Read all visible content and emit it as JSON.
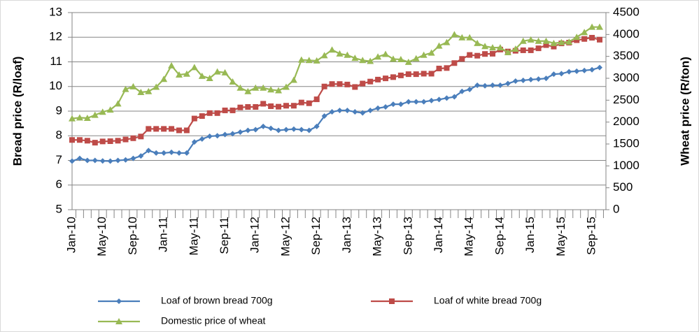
{
  "chart_data": {
    "type": "line",
    "y_label": "Bread price (R/loaf)",
    "y2_label": "Wheat price (R/ton)",
    "categories": [
      "Jan-10",
      null,
      null,
      null,
      "May-10",
      null,
      null,
      null,
      "Sep-10",
      null,
      null,
      null,
      "Jan-11",
      null,
      null,
      null,
      "May-11",
      null,
      null,
      null,
      "Sep-11",
      null,
      null,
      null,
      "Jan-12",
      null,
      null,
      null,
      "May-12",
      null,
      null,
      null,
      "Sep-12",
      null,
      null,
      null,
      "Jan-13",
      null,
      null,
      null,
      "May-13",
      null,
      null,
      null,
      "Sep-13",
      null,
      null,
      null,
      "Jan-14",
      null,
      null,
      null,
      "May-14",
      null,
      null,
      null,
      "Sep-14",
      null,
      null,
      null,
      "Jan-15",
      null,
      null,
      null,
      "May-15",
      null,
      null,
      null,
      "Sep-15",
      null
    ],
    "series": [
      {
        "name": "Loaf of brown bread 700g",
        "color": "#4a7ebb",
        "marker": "diamond",
        "values": [
          6.97,
          7.08,
          7.0,
          7.0,
          6.98,
          6.97,
          7.0,
          7.02,
          7.08,
          7.18,
          7.4,
          7.3,
          7.3,
          7.33,
          7.3,
          7.3,
          7.75,
          7.87,
          7.98,
          8.0,
          8.05,
          8.08,
          8.15,
          8.22,
          8.25,
          8.38,
          8.3,
          8.22,
          8.25,
          8.27,
          8.25,
          8.22,
          8.38,
          8.8,
          8.97,
          9.03,
          9.03,
          8.97,
          8.93,
          9.03,
          9.12,
          9.17,
          9.28,
          9.28,
          9.38,
          9.38,
          9.38,
          9.43,
          9.47,
          9.53,
          9.58,
          9.8,
          9.88,
          10.05,
          10.03,
          10.05,
          10.05,
          10.12,
          10.22,
          10.25,
          10.28,
          10.3,
          10.33,
          10.5,
          10.52,
          10.6,
          10.62,
          10.65,
          10.68,
          10.77
        ]
      },
      {
        "name": "Loaf of white bread 700g",
        "color": "#be4b48",
        "marker": "square",
        "values": [
          7.83,
          7.83,
          7.8,
          7.72,
          7.77,
          7.78,
          7.8,
          7.85,
          7.9,
          7.97,
          8.28,
          8.28,
          8.28,
          8.28,
          8.22,
          8.22,
          8.7,
          8.8,
          8.92,
          8.92,
          9.03,
          9.03,
          9.15,
          9.17,
          9.17,
          9.3,
          9.2,
          9.18,
          9.22,
          9.22,
          9.35,
          9.32,
          9.48,
          10.0,
          10.1,
          10.1,
          10.08,
          9.98,
          10.12,
          10.2,
          10.28,
          10.33,
          10.38,
          10.45,
          10.5,
          10.5,
          10.52,
          10.52,
          10.73,
          10.75,
          10.95,
          11.12,
          11.28,
          11.25,
          11.32,
          11.33,
          11.5,
          11.42,
          11.45,
          11.47,
          11.47,
          11.55,
          11.68,
          11.62,
          11.75,
          11.78,
          11.88,
          11.93,
          11.98,
          11.9
        ]
      },
      {
        "name": "Domestic price of wheat",
        "color": "#98b954",
        "marker": "triangle",
        "axis": "y2",
        "values": [
          2080,
          2100,
          2090,
          2160,
          2230,
          2280,
          2420,
          2750,
          2810,
          2680,
          2700,
          2800,
          2980,
          3290,
          3080,
          3100,
          3250,
          3050,
          3000,
          3150,
          3130,
          2920,
          2780,
          2700,
          2780,
          2780,
          2740,
          2720,
          2800,
          2960,
          3420,
          3410,
          3400,
          3520,
          3650,
          3560,
          3530,
          3460,
          3410,
          3390,
          3490,
          3550,
          3440,
          3430,
          3370,
          3450,
          3530,
          3580,
          3740,
          3820,
          4000,
          3930,
          3930,
          3800,
          3730,
          3700,
          3700,
          3590,
          3670,
          3850,
          3880,
          3850,
          3850,
          3800,
          3820,
          3830,
          3940,
          4050,
          4170,
          4170
        ]
      }
    ],
    "ylim": [
      5,
      13
    ],
    "yticks": [
      5,
      6,
      7,
      8,
      9,
      10,
      11,
      12,
      13
    ],
    "y2lim": [
      0,
      4500
    ],
    "y2ticks": [
      0,
      500,
      1000,
      1500,
      2000,
      2500,
      3000,
      3500,
      4000,
      4500
    ],
    "grid": true
  }
}
